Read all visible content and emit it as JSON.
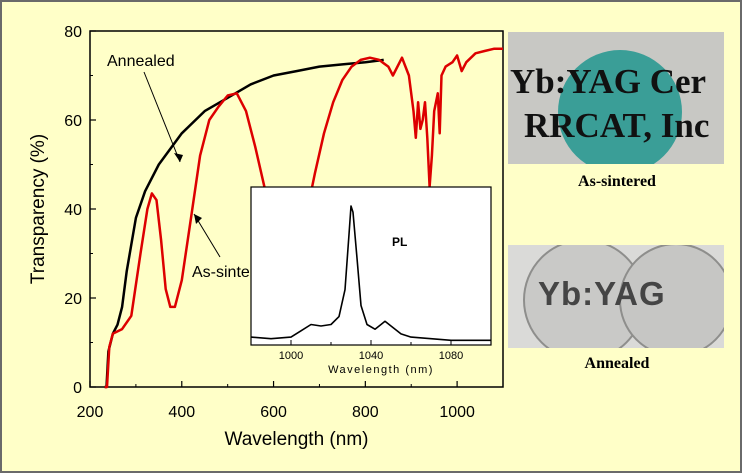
{
  "chart_data": [
    {
      "type": "line",
      "xlabel": "Wavelength (nm)",
      "ylabel": "Transparency (%)",
      "xlim": [
        200,
        1100
      ],
      "ylim": [
        0,
        80
      ],
      "xticks": [
        200,
        400,
        600,
        800,
        1000
      ],
      "yticks": [
        0,
        20,
        40,
        60,
        80
      ],
      "annotations": [
        "Annealed",
        "As-sintered"
      ],
      "series": [
        {
          "name": "Annealed",
          "color": "#000000",
          "points": [
            [
              232,
              0
            ],
            [
              236,
              0
            ],
            [
              240,
              8
            ],
            [
              250,
              12
            ],
            [
              260,
              14
            ],
            [
              270,
              18
            ],
            [
              280,
              26
            ],
            [
              290,
              32
            ],
            [
              300,
              38
            ],
            [
              320,
              44
            ],
            [
              350,
              50
            ],
            [
              400,
              57
            ],
            [
              450,
              62
            ],
            [
              500,
              65
            ],
            [
              550,
              68
            ],
            [
              600,
              70
            ],
            [
              650,
              71
            ],
            [
              700,
              72
            ],
            [
              750,
              72.5
            ],
            [
              800,
              73
            ],
            [
              840,
              73.5
            ]
          ]
        },
        {
          "name": "As-sintered",
          "color": "#dd0000",
          "points": [
            [
              232,
              0
            ],
            [
              237,
              0
            ],
            [
              242,
              9
            ],
            [
              250,
              12
            ],
            [
              270,
              13
            ],
            [
              290,
              16
            ],
            [
              310,
              30
            ],
            [
              325,
              40
            ],
            [
              335,
              43.5
            ],
            [
              345,
              42
            ],
            [
              355,
              33
            ],
            [
              365,
              22
            ],
            [
              375,
              18
            ],
            [
              385,
              18
            ],
            [
              400,
              24
            ],
            [
              420,
              38
            ],
            [
              440,
              52
            ],
            [
              460,
              60
            ],
            [
              480,
              63
            ],
            [
              500,
              65.5
            ],
            [
              520,
              66
            ],
            [
              540,
              62
            ],
            [
              560,
              54
            ],
            [
              580,
              45
            ],
            [
              600,
              36
            ],
            [
              620,
              30
            ],
            [
              635,
              29
            ],
            [
              650,
              31
            ],
            [
              670,
              38
            ],
            [
              690,
              48
            ],
            [
              710,
              57
            ],
            [
              730,
              64
            ],
            [
              750,
              69
            ],
            [
              770,
              72
            ],
            [
              790,
              73.5
            ],
            [
              810,
              74
            ],
            [
              830,
              73.5
            ],
            [
              850,
              72
            ],
            [
              860,
              70
            ],
            [
              880,
              74
            ],
            [
              895,
              70
            ],
            [
              905,
              62
            ],
            [
              910,
              56
            ],
            [
              915,
              64
            ],
            [
              920,
              58
            ],
            [
              925,
              60
            ],
            [
              930,
              64
            ],
            [
              935,
              56
            ],
            [
              940,
              45
            ],
            [
              945,
              52
            ],
            [
              950,
              62
            ],
            [
              958,
              66
            ],
            [
              962,
              57
            ],
            [
              966,
              70
            ],
            [
              975,
              72
            ],
            [
              990,
              73
            ],
            [
              1000,
              74.5
            ],
            [
              1010,
              71
            ],
            [
              1020,
              73
            ],
            [
              1040,
              75
            ],
            [
              1060,
              75.5
            ],
            [
              1080,
              76
            ],
            [
              1100,
              76
            ]
          ]
        }
      ]
    },
    {
      "type": "line",
      "title": "PL",
      "xlabel": "Wavelength (nm)",
      "xlim": [
        980,
        1100
      ],
      "xticks": [
        1000,
        1040,
        1080
      ],
      "ylim": [
        0,
        1
      ],
      "series": [
        {
          "color": "#000000",
          "points": [
            [
              980,
              0.05
            ],
            [
              990,
              0.04
            ],
            [
              1000,
              0.05
            ],
            [
              1005,
              0.09
            ],
            [
              1010,
              0.13
            ],
            [
              1015,
              0.12
            ],
            [
              1020,
              0.13
            ],
            [
              1024,
              0.18
            ],
            [
              1027,
              0.35
            ],
            [
              1029,
              0.7
            ],
            [
              1030,
              0.88
            ],
            [
              1031,
              0.84
            ],
            [
              1033,
              0.55
            ],
            [
              1035,
              0.25
            ],
            [
              1038,
              0.13
            ],
            [
              1042,
              0.1
            ],
            [
              1045,
              0.13
            ],
            [
              1047,
              0.15
            ],
            [
              1050,
              0.12
            ],
            [
              1055,
              0.07
            ],
            [
              1060,
              0.05
            ],
            [
              1070,
              0.04
            ],
            [
              1080,
              0.03
            ],
            [
              1090,
              0.03
            ],
            [
              1100,
              0.03
            ]
          ]
        }
      ]
    }
  ],
  "photos": {
    "as_sintered": {
      "caption": "As-sintered",
      "text_line1": "Yb:YAG Cer",
      "text_line2": "RRCAT, Inc",
      "disc_color": "#3a9e97"
    },
    "annealed": {
      "caption": "Annealed",
      "text": "Yb:YAG"
    }
  }
}
